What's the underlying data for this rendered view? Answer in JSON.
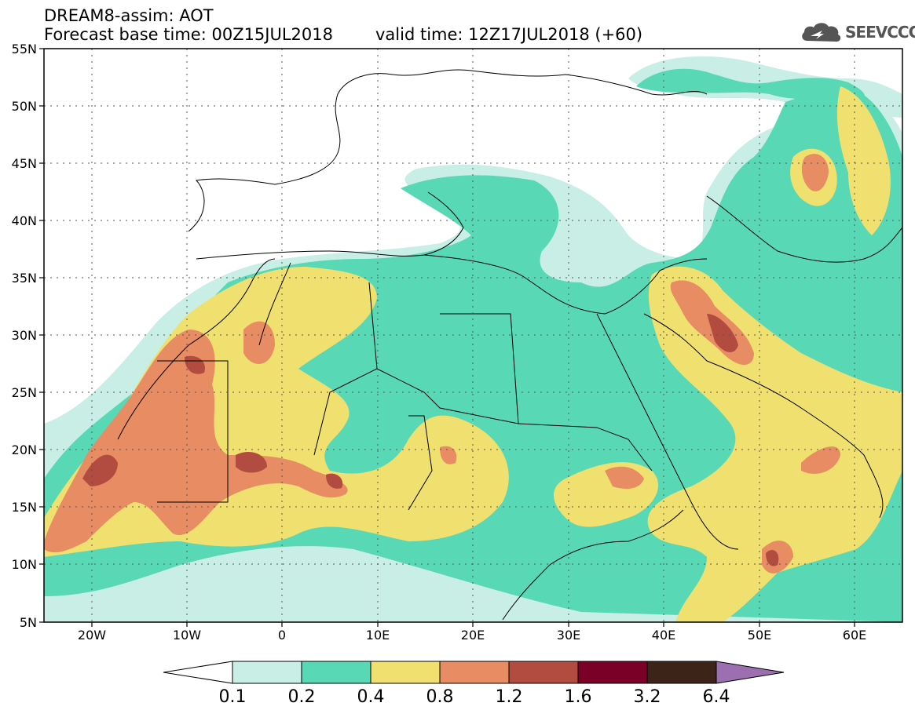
{
  "header": {
    "line1": "DREAM8-assim: AOT",
    "line2": "Forecast base time: 00Z15JUL2018",
    "line3": "valid time: 12Z17JUL2018 (+60)"
  },
  "logo": {
    "text": "SEEVCCC",
    "icon": "cloud-icon"
  },
  "map": {
    "lat_labels": [
      "55N",
      "50N",
      "45N",
      "40N",
      "35N",
      "30N",
      "25N",
      "20N",
      "15N",
      "10N",
      "5N"
    ],
    "lon_labels": [
      "20W",
      "10W",
      "0",
      "10E",
      "20E",
      "30E",
      "40E",
      "50E",
      "60E"
    ],
    "lon_range": [
      -25,
      65
    ],
    "lat_range": [
      5,
      55
    ]
  },
  "colorbar": {
    "colors": [
      "#ffffff",
      "#c8eee6",
      "#58d8b4",
      "#f0e070",
      "#e88c64",
      "#b24c40",
      "#7a0028",
      "#3c2418",
      "#9c70b0"
    ],
    "labels": [
      "0.1",
      "0.2",
      "0.4",
      "0.8",
      "1.2",
      "1.6",
      "3.2",
      "6.4"
    ]
  },
  "colors": {
    "c1": "#c8eee6",
    "c2": "#58d8b4",
    "c3": "#f0e070",
    "c4": "#e88c64",
    "c5": "#b24c40"
  }
}
